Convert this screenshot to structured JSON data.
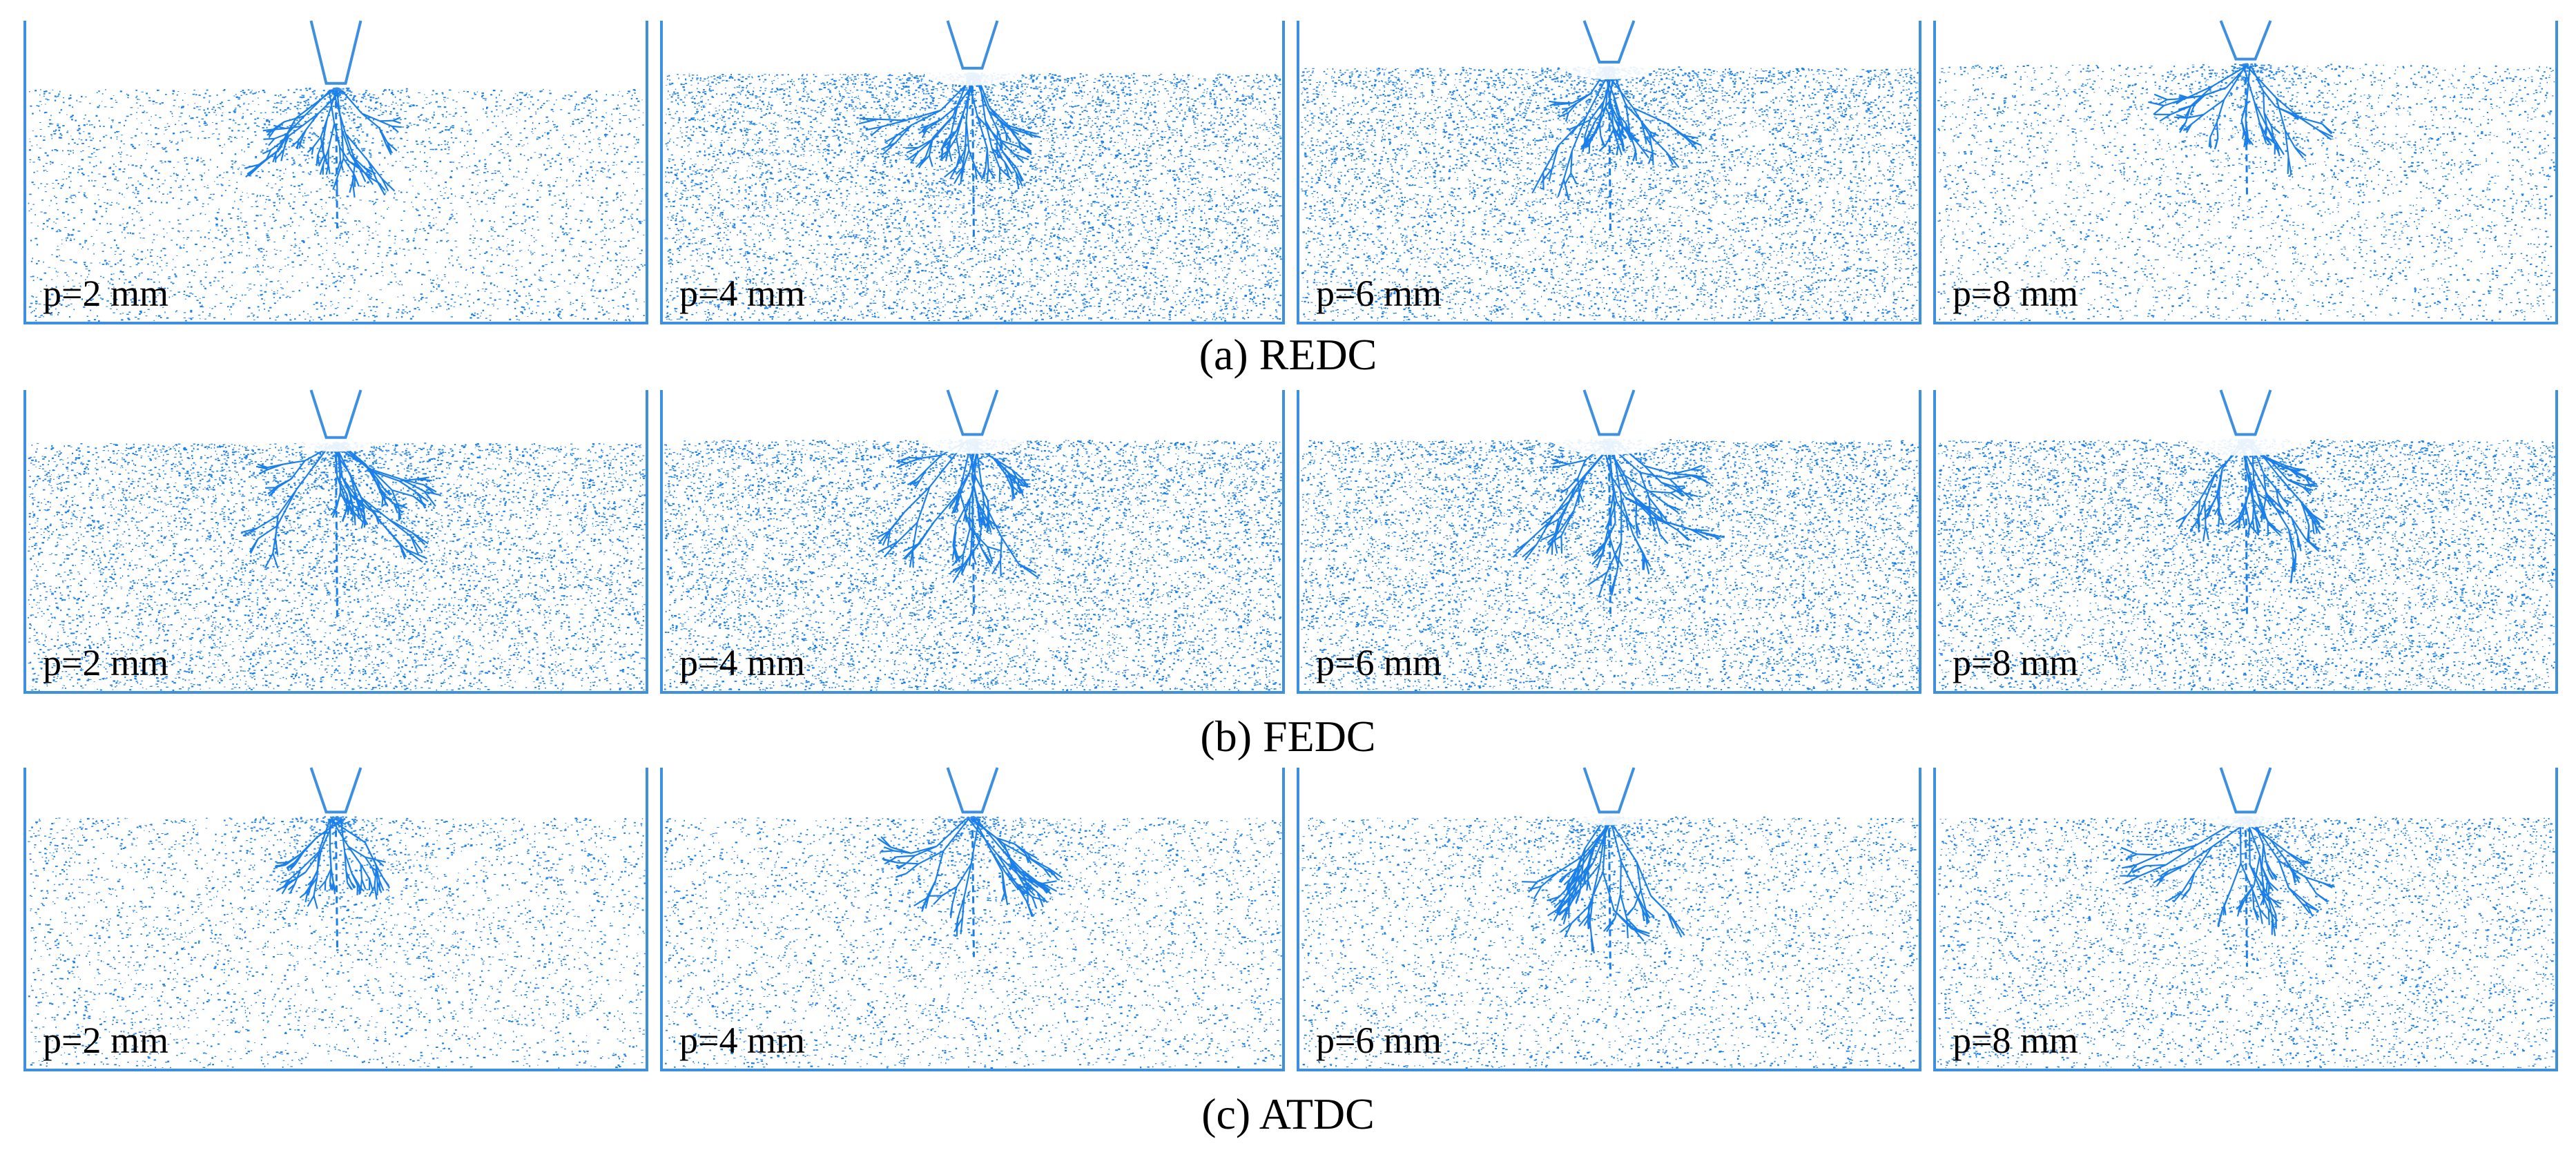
{
  "colors": {
    "particle": "#1a7fe8",
    "frame": "#3d8fe0",
    "background": "#ffffff",
    "text": "#000000"
  },
  "rows": [
    {
      "caption": "(a) REDC",
      "panels": [
        {
          "label": "p=2 mm",
          "density": 0.25,
          "crack": 0.6,
          "surface_level": 0.78,
          "crater": 0
        },
        {
          "label": "p=4 mm",
          "density": 0.85,
          "crack": 0.9,
          "surface_level": 0.83,
          "crater": 0.3
        },
        {
          "label": "p=6 mm",
          "density": 0.8,
          "crack": 0.9,
          "surface_level": 0.85,
          "crater": 0.3
        },
        {
          "label": "p=8 mm",
          "density": 0.3,
          "crack": 0.5,
          "surface_level": 0.86,
          "crater": 0
        }
      ]
    },
    {
      "caption": "(b) FEDC",
      "panels": [
        {
          "label": "p=2 mm",
          "density": 0.7,
          "crack": 1.0,
          "surface_level": 0.83,
          "crater": 0.15
        },
        {
          "label": "p=4 mm",
          "density": 0.85,
          "crack": 1.0,
          "surface_level": 0.84,
          "crater": 0.4
        },
        {
          "label": "p=6 mm",
          "density": 0.85,
          "crack": 1.0,
          "surface_level": 0.84,
          "crater": 0.45
        },
        {
          "label": "p=8 mm",
          "density": 0.8,
          "crack": 1.0,
          "surface_level": 0.84,
          "crater": 0.5
        }
      ]
    },
    {
      "caption": "(c) ATDC",
      "panels": [
        {
          "label": "p=2 mm",
          "density": 0.25,
          "crack": 0.5,
          "surface_level": 0.84,
          "crater": 0
        },
        {
          "label": "p=4 mm",
          "density": 0.3,
          "crack": 0.6,
          "surface_level": 0.84,
          "crater": 0
        },
        {
          "label": "p=6 mm",
          "density": 0.35,
          "crack": 0.8,
          "surface_level": 0.84,
          "crater": 0.1
        },
        {
          "label": "p=8 mm",
          "density": 0.45,
          "crack": 0.7,
          "surface_level": 0.84,
          "crater": 0.2
        }
      ]
    }
  ]
}
